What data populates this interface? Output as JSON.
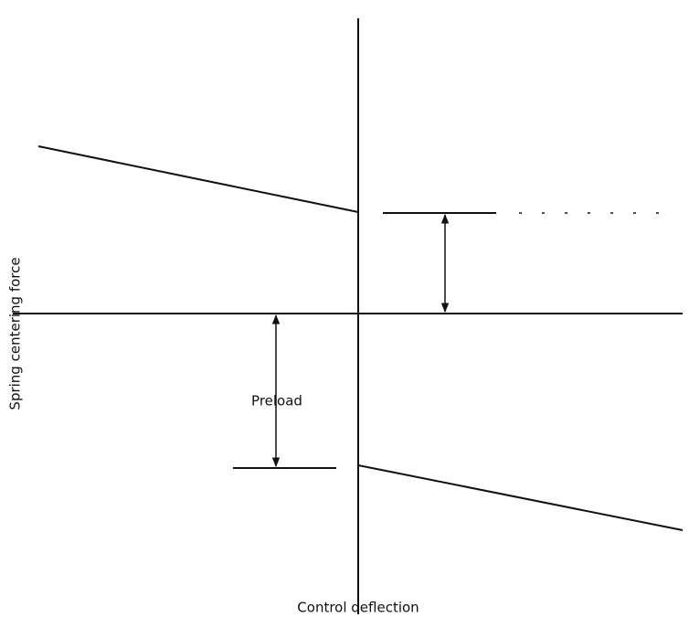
{
  "axis_labels": {
    "y": "Spring centering force",
    "x": "Control deflection"
  },
  "annotations": {
    "preload": "Preload"
  }
}
